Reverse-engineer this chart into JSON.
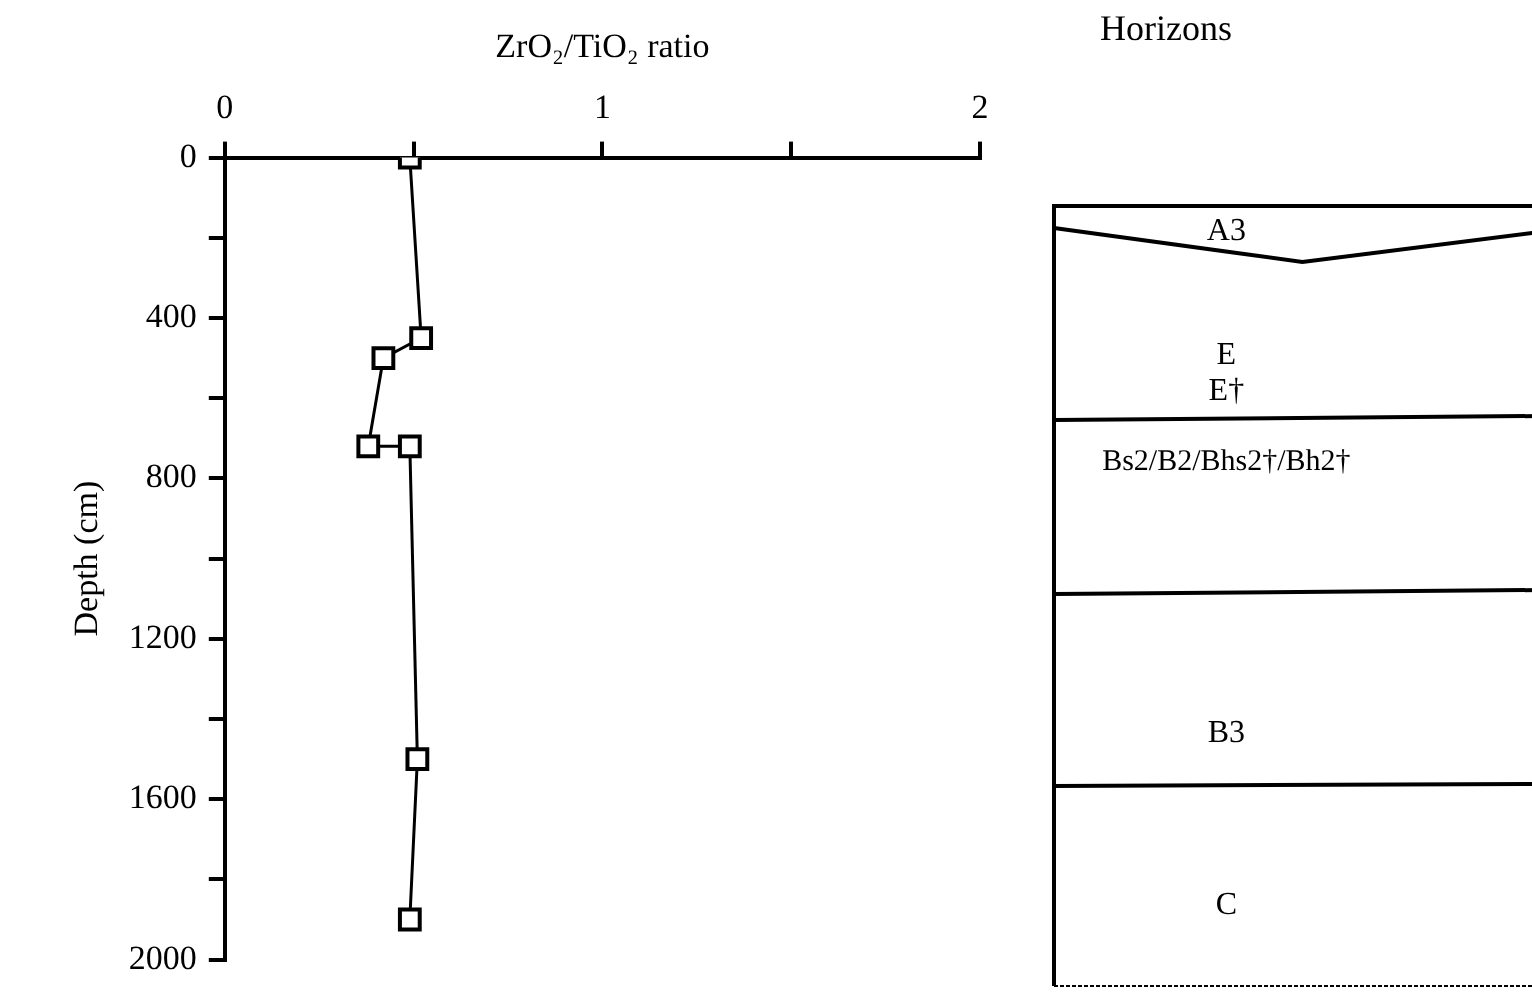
{
  "chart_data": [
    {
      "type": "line",
      "xlabel": "ZrO₂/TiO₂ ratio",
      "ylabel": "Depth (cm)",
      "x": [
        0.49,
        0.52,
        0.42,
        0.38,
        0.49,
        0.51,
        0.49
      ],
      "values": [
        0,
        450,
        500,
        720,
        720,
        1500,
        1900
      ],
      "color": "#000000",
      "marker": "square",
      "line_style": "solid",
      "xlim": [
        0,
        2
      ],
      "xticks": [
        0,
        {
          "value": 0.5,
          "label": null
        },
        1,
        {
          "value": 1.5,
          "label": null
        },
        2
      ],
      "ylim": [
        2000,
        0
      ],
      "yticks": [
        0,
        {
          "value": 200,
          "label": null
        },
        400,
        {
          "value": 600,
          "label": null
        },
        800,
        {
          "value": 1000,
          "label": null
        },
        1200,
        {
          "value": 1400,
          "label": null
        },
        1600,
        {
          "value": 1800,
          "label": null
        },
        2000
      ],
      "grid": false,
      "legend": false
    },
    {
      "type": "other",
      "title": "Horizons",
      "annotations": [
        "A3",
        "E",
        "E†",
        "Bs2/B2/Bhs2†/Bh2†",
        "B3",
        "C"
      ]
    }
  ]
}
